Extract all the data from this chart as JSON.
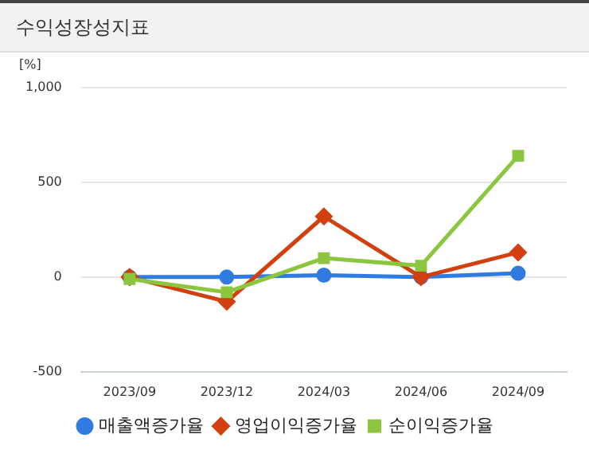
{
  "chart_data": {
    "type": "line",
    "title": "수익성장성지표",
    "ylabel": "[%]",
    "categories": [
      "2023/09",
      "2023/12",
      "2024/03",
      "2024/06",
      "2024/09"
    ],
    "series": [
      {
        "name": "매출액증가율",
        "color": "#2f7be0",
        "marker": "circle",
        "values": [
          0,
          0,
          10,
          0,
          20
        ]
      },
      {
        "name": "영업이익증가율",
        "color": "#d2400f",
        "marker": "diamond",
        "values": [
          0,
          -130,
          320,
          0,
          130
        ]
      },
      {
        "name": "순이익증가율",
        "color": "#8cc63f",
        "marker": "square",
        "values": [
          -10,
          -80,
          100,
          60,
          640
        ]
      }
    ],
    "ylim": [
      -500,
      1000
    ],
    "yticks": [
      -500,
      0,
      {
        "value": 500,
        "label": "500"
      },
      {
        "value": 1000,
        "label": "1,000"
      }
    ],
    "grid": "y",
    "legend": "bottom"
  }
}
